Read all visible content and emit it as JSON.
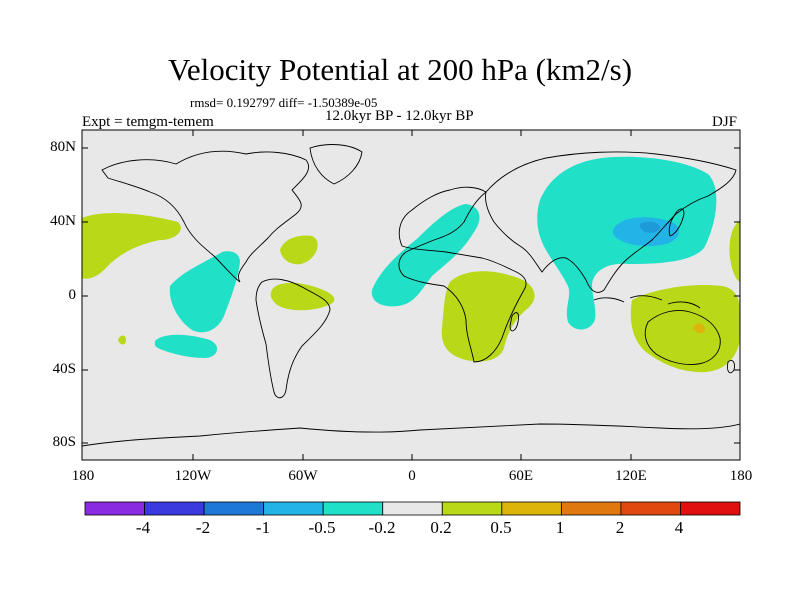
{
  "title": "Velocity Potential at 200 hPa (km2/s)",
  "stats_line": "rmsd= 0.192797 diff= -1.50389e-05",
  "period": "12.0kyr BP - 12.0kyr BP",
  "experiment": "Expt = temgm-temem",
  "season": "DJF",
  "y_axis": {
    "ticks": [
      "80N",
      "40N",
      "0",
      "40S",
      "80S"
    ],
    "values": [
      80,
      40,
      0,
      -40,
      -80
    ]
  },
  "x_axis": {
    "ticks": [
      "180",
      "120W",
      "60W",
      "0",
      "60E",
      "120E",
      "180"
    ],
    "values": [
      -180,
      -120,
      -60,
      0,
      60,
      120,
      180
    ]
  },
  "colorbar": {
    "labels": [
      "-4",
      "-2",
      "-1",
      "-0.5",
      "-0.2",
      "0.2",
      "0.5",
      "1",
      "2",
      "4"
    ],
    "colors": [
      "#8a2be2",
      "#3a3adf",
      "#1e78d8",
      "#22b4e6",
      "#20e0c8",
      "#e8e8e8",
      "#b8d818",
      "#dcb40a",
      "#e07810",
      "#e04810",
      "#e01010"
    ]
  },
  "map": {
    "background_color": "#e8e8e8",
    "legend_colors": {
      "neg_0_2_0_5": "#20e0c8",
      "neg_0_5_1": "#22b4e6",
      "pos_0_2_0_5": "#b8d818",
      "pos_0_5_1": "#dcb40a"
    }
  }
}
